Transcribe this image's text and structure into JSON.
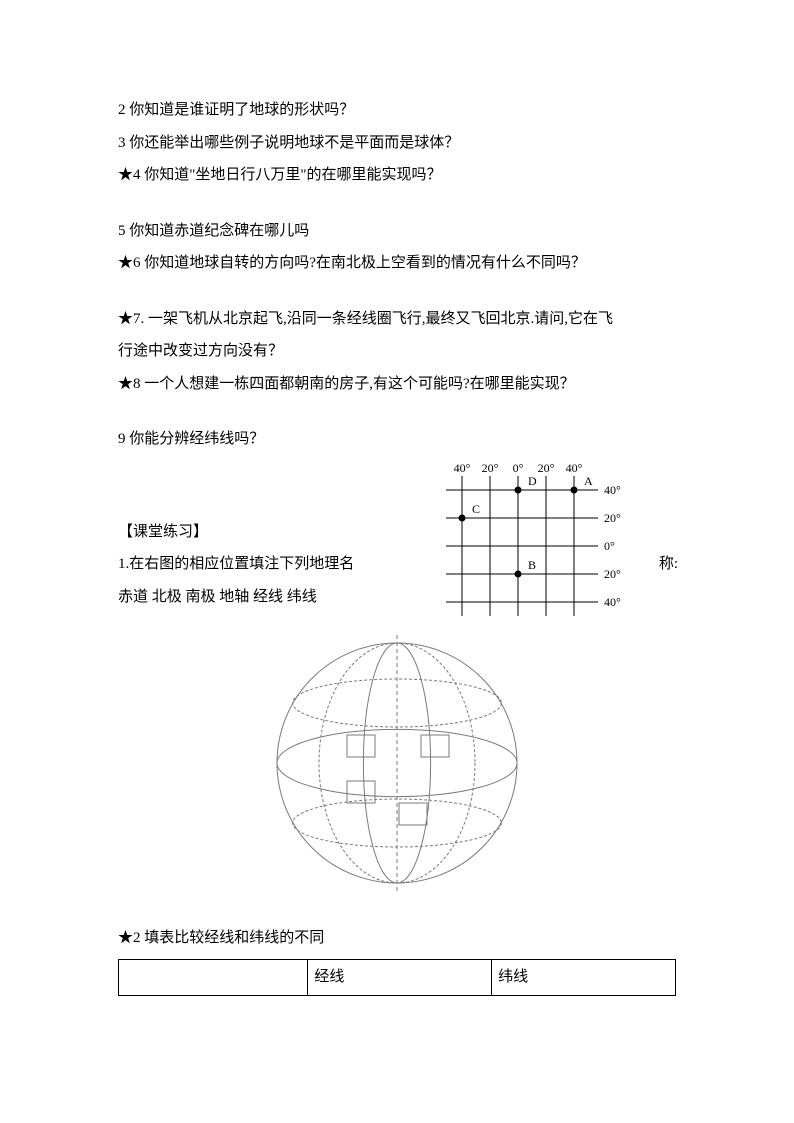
{
  "questions": {
    "q2": "2 你知道是谁证明了地球的形状吗？",
    "q3": "3 你还能举出哪些例子说明地球不是平面而是球体？",
    "q4": "★4 你知道\"坐地日行八万里\"的在哪里能实现吗？",
    "q5": "5 你知道赤道纪念碑在哪儿吗",
    "q6": "★6 你知道地球自转的方向吗?在南北极上空看到的情况有什么不同吗？",
    "q7a": "★7. 一架飞机从北京起飞,沿同一条经线圈飞行,最终又飞回北京.请问,它在飞",
    "q7b": "行途中改变过方向没有？",
    "q8": "★8 一个人想建一栋四面都朝南的房子,有这个可能吗?在哪里能实现？",
    "q9": "9 你能分辨经纬线吗？"
  },
  "exercise": {
    "title": "【课堂练习】",
    "q1a": "1.在右图的相应位置填注下列地理名",
    "q1b": "称:",
    "q1c": "赤道  北极    南极  地轴   经线   纬线",
    "q2": "★2 填表比较经线和纬线的不同"
  },
  "table": {
    "col1": "",
    "col2": "经线",
    "col3": "纬线"
  },
  "grid": {
    "xlabels": [
      "40°",
      "20°",
      "0°",
      "20°",
      "40°"
    ],
    "ylabels": [
      "40°",
      "20°",
      "0°",
      "20°",
      "40°"
    ],
    "points": {
      "A": {
        "col": 4,
        "row": 0,
        "label": "A"
      },
      "B": {
        "col": 2,
        "row": 3,
        "label": "B"
      },
      "C": {
        "col": 0,
        "row": 1,
        "label": "C"
      },
      "D": {
        "col": 2,
        "row": 0,
        "label": "D"
      }
    },
    "stroke": "#000000",
    "fontsize": 12,
    "cell": 28,
    "strokeWidth": 1
  },
  "globe": {
    "stroke": "#7a7a7a",
    "fill": "#f5f5f5",
    "radius": 120,
    "strokeWidth": 1
  }
}
